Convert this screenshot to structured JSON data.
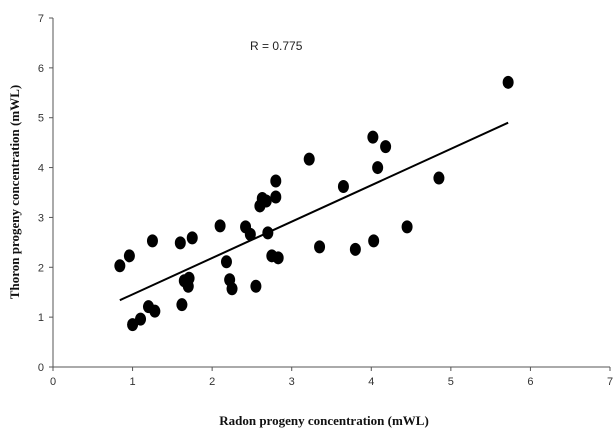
{
  "chart_data": {
    "type": "scatter",
    "xlabel": "Radon progeny concentration (mWL)",
    "ylabel": "Thoron progeny concentration (mWL)",
    "xlim": [
      0,
      7
    ],
    "ylim": [
      0,
      7
    ],
    "xticks": [
      0,
      1,
      2,
      3,
      4,
      5,
      6,
      7
    ],
    "yticks": [
      0,
      1,
      2,
      3,
      4,
      5,
      6,
      7
    ],
    "grid": false,
    "legend": "none",
    "annotation": "R = 0.775",
    "marker_color": "#000000",
    "series": [
      {
        "points": [
          [
            0.84,
            2.03
          ],
          [
            0.96,
            2.23
          ],
          [
            1.0,
            0.85
          ],
          [
            1.1,
            0.96
          ],
          [
            1.2,
            1.21
          ],
          [
            1.25,
            2.53
          ],
          [
            1.28,
            1.12
          ],
          [
            1.6,
            2.49
          ],
          [
            1.62,
            1.25
          ],
          [
            1.65,
            1.73
          ],
          [
            1.7,
            1.62
          ],
          [
            1.71,
            1.78
          ],
          [
            1.75,
            2.59
          ],
          [
            2.1,
            2.83
          ],
          [
            2.18,
            2.11
          ],
          [
            2.22,
            1.75
          ],
          [
            2.25,
            1.57
          ],
          [
            2.42,
            2.81
          ],
          [
            2.48,
            2.66
          ],
          [
            2.55,
            1.62
          ],
          [
            2.6,
            3.23
          ],
          [
            2.63,
            3.38
          ],
          [
            2.68,
            3.33
          ],
          [
            2.7,
            2.69
          ],
          [
            2.75,
            2.23
          ],
          [
            2.8,
            3.73
          ],
          [
            2.8,
            3.41
          ],
          [
            2.83,
            2.19
          ],
          [
            3.22,
            4.17
          ],
          [
            3.35,
            2.41
          ],
          [
            3.65,
            3.62
          ],
          [
            3.8,
            2.36
          ],
          [
            4.02,
            4.61
          ],
          [
            4.03,
            2.53
          ],
          [
            4.08,
            4.0
          ],
          [
            4.18,
            4.42
          ],
          [
            4.45,
            2.81
          ],
          [
            4.85,
            3.79
          ],
          [
            5.72,
            5.71
          ]
        ]
      }
    ],
    "trendline": {
      "x": [
        0.84,
        5.72
      ],
      "y": [
        1.34,
        4.9
      ]
    }
  }
}
